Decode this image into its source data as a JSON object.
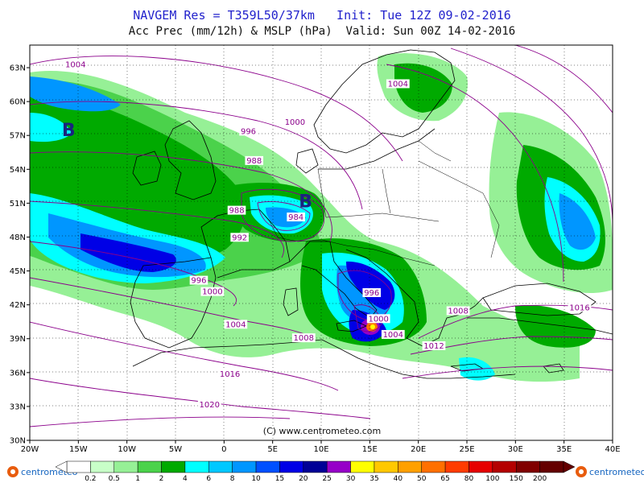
{
  "header": {
    "line1": "NAVGEM Res = T359L50/37km   Init: Tue 12Z 09-02-2016",
    "line2": "Acc Prec (mm/12h) & MSLP (hPa)  Valid: Sun 00Z 14-02-2016"
  },
  "map": {
    "lon_range": [
      -20,
      40
    ],
    "lat_range": [
      30,
      65
    ],
    "lat_ticks": [
      "63N",
      "60N",
      "57N",
      "54N",
      "51N",
      "48N",
      "45N",
      "42N",
      "39N",
      "36N",
      "33N",
      "30N"
    ],
    "lon_ticks": [
      "20W",
      "15W",
      "10W",
      "5W",
      "0",
      "5E",
      "10E",
      "15E",
      "20E",
      "25E",
      "30E",
      "35E",
      "40E"
    ],
    "copyright": "(C) www.centrometeo.com",
    "low_symbol": "B",
    "isobar_color": "#8b008b"
  },
  "isobar_labels": [
    {
      "text": "1004",
      "lon": -15.3,
      "lat": 63.1
    },
    {
      "text": "1004",
      "lon": 17.9,
      "lat": 61.4
    },
    {
      "text": "1000",
      "lon": 7.3,
      "lat": 58.0
    },
    {
      "text": "996",
      "lon": 2.5,
      "lat": 57.2
    },
    {
      "text": "988",
      "lon": 3.1,
      "lat": 54.6
    },
    {
      "text": "988",
      "lon": 1.3,
      "lat": 50.2
    },
    {
      "text": "984",
      "lon": 7.4,
      "lat": 49.6
    },
    {
      "text": "992",
      "lon": 1.6,
      "lat": 47.8
    },
    {
      "text": "996",
      "lon": -2.6,
      "lat": 44.0
    },
    {
      "text": "1000",
      "lon": -1.2,
      "lat": 43.0
    },
    {
      "text": "996",
      "lon": 15.2,
      "lat": 42.9
    },
    {
      "text": "1000",
      "lon": 15.9,
      "lat": 40.6
    },
    {
      "text": "1004",
      "lon": 17.4,
      "lat": 39.2
    },
    {
      "text": "1004",
      "lon": 1.2,
      "lat": 40.1
    },
    {
      "text": "1008",
      "lon": 8.2,
      "lat": 38.9
    },
    {
      "text": "1012",
      "lon": 21.6,
      "lat": 38.2
    },
    {
      "text": "1008",
      "lon": 24.1,
      "lat": 41.3
    },
    {
      "text": "1016",
      "lon": 36.6,
      "lat": 41.6
    },
    {
      "text": "1016",
      "lon": 0.6,
      "lat": 35.7
    },
    {
      "text": "1020",
      "lon": -1.5,
      "lat": 33.0
    }
  ],
  "lows": [
    {
      "lon": -16.0,
      "lat": 57.5
    },
    {
      "lon": 8.4,
      "lat": 51.2
    }
  ],
  "legend": {
    "labels": [
      "0.2",
      "0.5",
      "1",
      "2",
      "4",
      "6",
      "8",
      "10",
      "15",
      "20",
      "25",
      "30",
      "35",
      "40",
      "50",
      "65",
      "80",
      "100",
      "150",
      "200"
    ],
    "colors": [
      "#ffffff",
      "#c8ffc8",
      "#96f096",
      "#4bd24b",
      "#00aa00",
      "#00ffff",
      "#00c8ff",
      "#0096ff",
      "#0050ff",
      "#0000e6",
      "#000096",
      "#9600c8",
      "#ffff00",
      "#ffc800",
      "#ffa000",
      "#ff7000",
      "#ff3c00",
      "#e60000",
      "#b40000",
      "#800000",
      "#640000"
    ],
    "brand_left": "centrometeo",
    "brand_right": "centrometeo"
  }
}
